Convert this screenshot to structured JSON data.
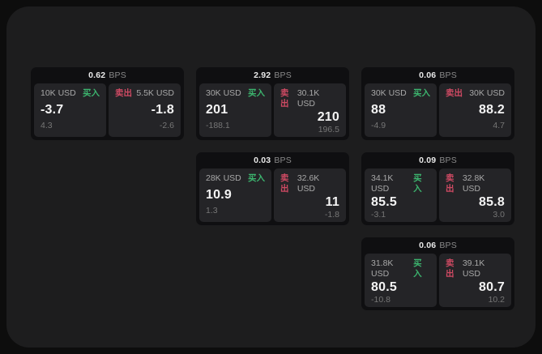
{
  "labels": {
    "bps": "BPS",
    "buy": "买入",
    "sell": "卖出"
  },
  "colors": {
    "buy_accent": "#3cb46e",
    "sell_accent": "#cf4a63",
    "surface_bg": "#1d1d1e",
    "card_bg": "#0f0f11",
    "panel_bg": "#242427"
  },
  "cards": [
    {
      "bps": "0.62",
      "buy": {
        "amount": "10K USD",
        "price": "-3.7",
        "delta": "4.3"
      },
      "sell": {
        "amount": "5.5K USD",
        "price": "-1.8",
        "delta": "-2.6"
      }
    },
    {
      "bps": "2.92",
      "buy": {
        "amount": "30K USD",
        "price": "201",
        "delta": "-188.1"
      },
      "sell": {
        "amount": "30.1K USD",
        "price": "210",
        "delta": "196.5"
      }
    },
    {
      "bps": "0.06",
      "buy": {
        "amount": "30K USD",
        "price": "88",
        "delta": "-4.9"
      },
      "sell": {
        "amount": "30K USD",
        "price": "88.2",
        "delta": "4.7"
      }
    },
    {
      "bps": "0.03",
      "buy": {
        "amount": "28K USD",
        "price": "10.9",
        "delta": "1.3"
      },
      "sell": {
        "amount": "32.6K USD",
        "price": "11",
        "delta": "-1.8"
      }
    },
    {
      "bps": "0.09",
      "buy": {
        "amount": "34.1K USD",
        "price": "85.5",
        "delta": "-3.1"
      },
      "sell": {
        "amount": "32.8K USD",
        "price": "85.8",
        "delta": "3.0"
      }
    },
    {
      "bps": "0.06",
      "buy": {
        "amount": "31.8K USD",
        "price": "80.5",
        "delta": "-10.8"
      },
      "sell": {
        "amount": "39.1K USD",
        "price": "80.7",
        "delta": "10.2"
      }
    }
  ]
}
